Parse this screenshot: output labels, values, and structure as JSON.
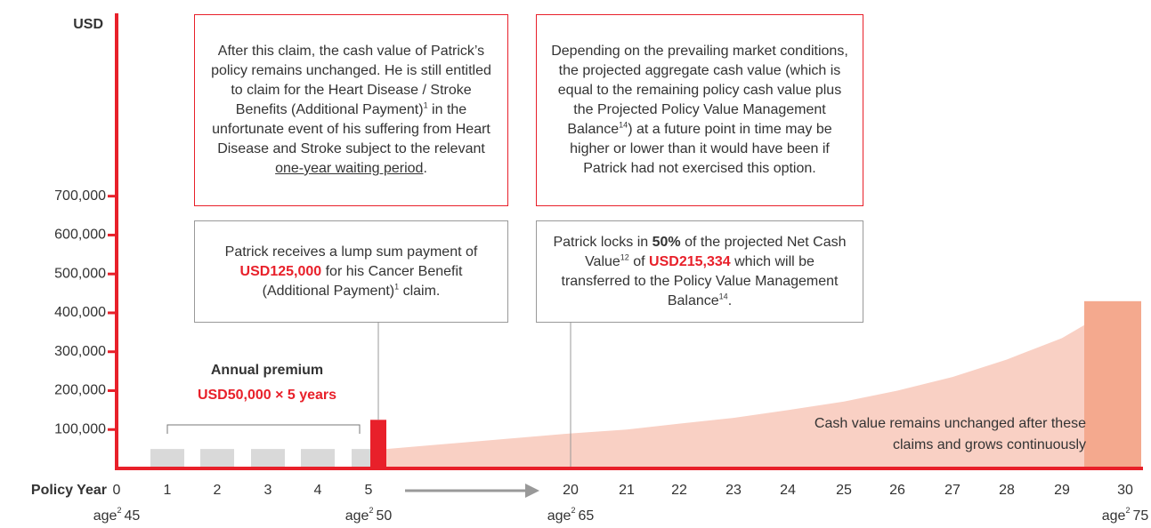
{
  "chart_data": {
    "type": "bar",
    "y_axis_label": "USD",
    "x_axis_label": "Policy Year",
    "categories": [
      0,
      1,
      2,
      3,
      4,
      5,
      20,
      21,
      22,
      23,
      24,
      25,
      26,
      27,
      28,
      29,
      30
    ],
    "ylim": [
      0,
      1170000
    ],
    "yticks": [
      {
        "value": 100000,
        "label": "100,000"
      },
      {
        "value": 200000,
        "label": "200,000"
      },
      {
        "value": 300000,
        "label": "300,000"
      },
      {
        "value": 400000,
        "label": "400,000"
      },
      {
        "value": 500000,
        "label": "500,000"
      },
      {
        "value": 600000,
        "label": "600,000"
      },
      {
        "value": 700000,
        "label": "700,000"
      }
    ],
    "axis_color": "#e8202a",
    "premium": {
      "x": [
        1,
        2,
        3,
        4,
        5
      ],
      "values": [
        50000,
        50000,
        50000,
        50000,
        50000
      ],
      "color": "#d9d9d9"
    },
    "claim": {
      "x": 5,
      "value": 125000,
      "color": "#e8202a"
    },
    "cash_value": {
      "x": [
        5,
        20,
        21,
        22,
        23,
        24,
        25,
        26,
        27,
        28,
        29,
        30
      ],
      "values": [
        50000,
        90000,
        100000,
        115000,
        130000,
        150000,
        172000,
        200000,
        235000,
        280000,
        335000,
        430000
      ],
      "color": "#f9d0c4",
      "end_color": "#f4a98e"
    },
    "age_labels": [
      {
        "prefix": "age",
        "sup": "2",
        "age": "45"
      },
      {
        "prefix": "age",
        "sup": "2",
        "age": "50"
      },
      {
        "prefix": "age",
        "sup": "2",
        "age": "65"
      },
      {
        "prefix": "age",
        "sup": "2",
        "age": "75"
      }
    ],
    "premium_label": {
      "title": "Annual premium",
      "amount": "USD50,000 × 5 years"
    },
    "cash_note": "Cash value remains unchanged after these claims and grows continuously",
    "boxes": [
      [
        "After this claim, the cash value of Patrick’s policy remains unchanged. He is still entitled to claim for the Heart Disease / Stroke Benefits (Additional Payment)",
        "1",
        " in the unfortunate event of his suffering from Heart Disease and Stroke subject to the relevant ",
        "one-year waiting period",
        "."
      ],
      [
        "Depending on the prevailing market conditions, the projected aggregate cash value (which is equal to the remaining policy cash value plus the Projected Policy Value Management Balance",
        "14",
        ") at a future point in time may be higher or lower than it would have been if Patrick had not exercised this option."
      ],
      [
        "Patrick receives a lump sum payment of ",
        "USD125,000",
        " for his Cancer Benefit (Additional Payment)",
        "1",
        " claim."
      ],
      [
        "Patrick locks in ",
        "50%",
        " of the projected Net Cash Value",
        "12",
        " of ",
        "USD215,334",
        " which will be transferred to the Policy Value Management Balance",
        "14",
        "."
      ]
    ]
  }
}
